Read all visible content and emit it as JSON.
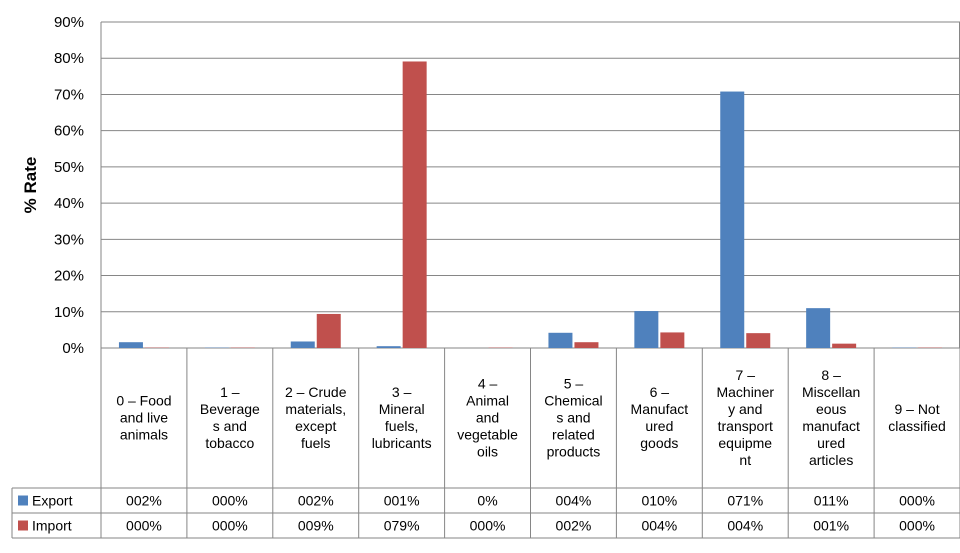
{
  "chart_data": {
    "type": "bar",
    "ylabel": "% Rate",
    "ylim": [
      0,
      90
    ],
    "y_ticks": [
      "0%",
      "10%",
      "20%",
      "30%",
      "40%",
      "50%",
      "60%",
      "70%",
      "80%",
      "90%"
    ],
    "grid": true,
    "categories": [
      [
        "0 – Food",
        "and live",
        "animals"
      ],
      [
        "1 –",
        "Beverage",
        "s and",
        "tobacco"
      ],
      [
        "2 – Crude",
        "materials,",
        "except",
        "fuels"
      ],
      [
        "3 –",
        "Mineral",
        "fuels,",
        "lubricants"
      ],
      [
        "4 –",
        "Animal",
        "and",
        "vegetable",
        "oils"
      ],
      [
        "5 –",
        "Chemical",
        "s and",
        "related",
        "products"
      ],
      [
        "6 –",
        "Manufact",
        "ured",
        "goods"
      ],
      [
        "7 –",
        "Machiner",
        "y and",
        "transport",
        "equipme",
        "nt"
      ],
      [
        "8 –",
        "Miscellan",
        "eous",
        "manufact",
        "ured",
        "articles"
      ],
      [
        "9 – Not",
        "classified"
      ]
    ],
    "series": [
      {
        "name": "Export",
        "color": "#4f81bd",
        "values": [
          1.6,
          0.1,
          1.8,
          0.5,
          0.0,
          4.2,
          10.2,
          70.8,
          11.0,
          0.1
        ],
        "table_labels": [
          "002%",
          "000%",
          "002%",
          "001%",
          "0%",
          "004%",
          "010%",
          "071%",
          "011%",
          "000%"
        ]
      },
      {
        "name": "Import",
        "color": "#c0504d",
        "values": [
          0.1,
          0.1,
          9.4,
          79.1,
          0.1,
          1.6,
          4.3,
          4.1,
          1.2,
          0.1
        ],
        "table_labels": [
          "000%",
          "000%",
          "009%",
          "079%",
          "000%",
          "002%",
          "004%",
          "004%",
          "001%",
          "000%"
        ]
      }
    ]
  }
}
